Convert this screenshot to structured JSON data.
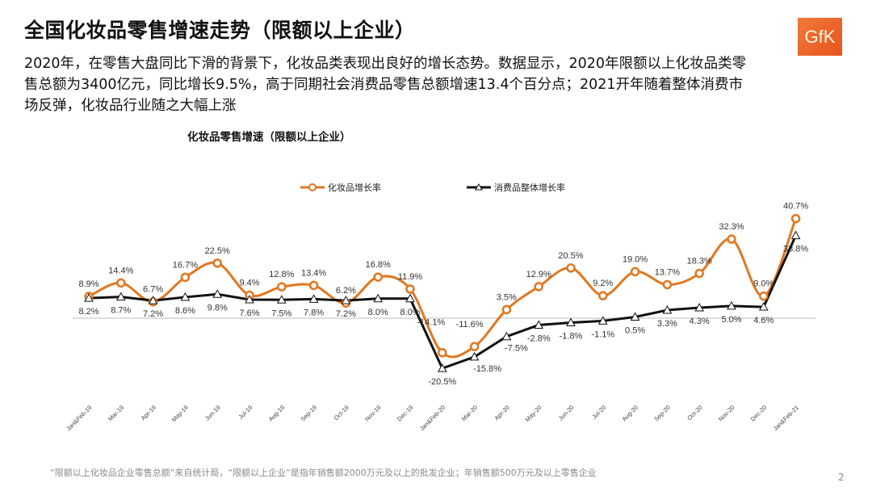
{
  "header": {
    "title": "全国化妆品零售增速走势（限额以上企业）",
    "description": "2020年，在零售大盘同比下滑的背景下，化妆品类表现出良好的增长态势。数据显示，2020年限额以上化妆品类零售总额为3400亿元，同比增长9.5%，高于同期社会消费品零售总额增速13.4个百分点；2021开年随着整体消费市场反弹，化妆品行业随之大幅上涨",
    "logo_text": "GfK",
    "logo_color": "#E9581F"
  },
  "chart_data": {
    "type": "line",
    "title": "化妆品零售增速（限额以上企业）",
    "legend_position": "top",
    "grid": false,
    "categories": [
      "Jan&Feb-19",
      "Mar-19",
      "Apr-19",
      "May-19",
      "Jun-19",
      "Jul-19",
      "Aug-19",
      "Sep-19",
      "Oct-19",
      "Nov-19",
      "Dec-19",
      "Jan&Feb-20",
      "Mar-20",
      "Apr-20",
      "May-20",
      "Jun-20",
      "Jul-20",
      "Aug-20",
      "Sep-20",
      "Oct-20",
      "Nov-20",
      "Dec-20",
      "Jan&Feb-21"
    ],
    "series": [
      {
        "name": "化妆品增长率",
        "color": "#E2761F",
        "marker": "circle",
        "smooth": true,
        "values": [
          8.9,
          14.4,
          6.7,
          16.7,
          22.5,
          9.4,
          12.8,
          13.4,
          6.2,
          16.8,
          11.9,
          -14.1,
          -11.6,
          3.5,
          12.9,
          20.5,
          9.2,
          19.0,
          13.7,
          18.3,
          32.3,
          9.0,
          40.7
        ]
      },
      {
        "name": "消费品整体增长率",
        "color": "#111111",
        "marker": "triangle",
        "smooth": false,
        "values": [
          8.2,
          8.7,
          7.2,
          8.6,
          9.8,
          7.6,
          7.5,
          7.8,
          7.2,
          8.0,
          8.0,
          -20.5,
          -15.8,
          -7.5,
          -2.8,
          -1.8,
          -1.1,
          0.5,
          3.3,
          4.3,
          5.0,
          4.6,
          33.8
        ]
      }
    ],
    "value_suffix": "%",
    "ylim": [
      -25,
      45
    ]
  },
  "footer": {
    "note": "“限额以上化妆品企业零售总额”来自统计局，“限额以上企业”是指年销售额2000万元及以上的批发企业；年销售额500万元及以上零售企业",
    "page_number": "2"
  }
}
